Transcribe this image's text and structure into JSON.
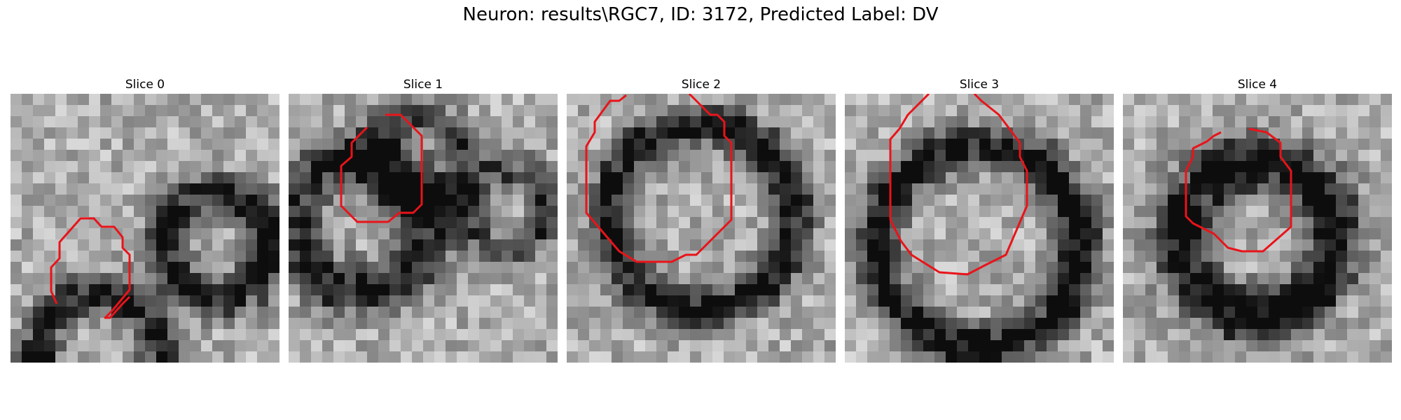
{
  "figure": {
    "title": "Neuron: results\\RGC7, ID: 3172, Predicted Label: DV",
    "contour_color": "#e8141a",
    "colormap": "gray",
    "panels": [
      {
        "title": "Slice 0"
      },
      {
        "title": "Slice 1"
      },
      {
        "title": "Slice 2"
      },
      {
        "title": "Slice 3"
      },
      {
        "title": "Slice 4"
      }
    ]
  }
}
